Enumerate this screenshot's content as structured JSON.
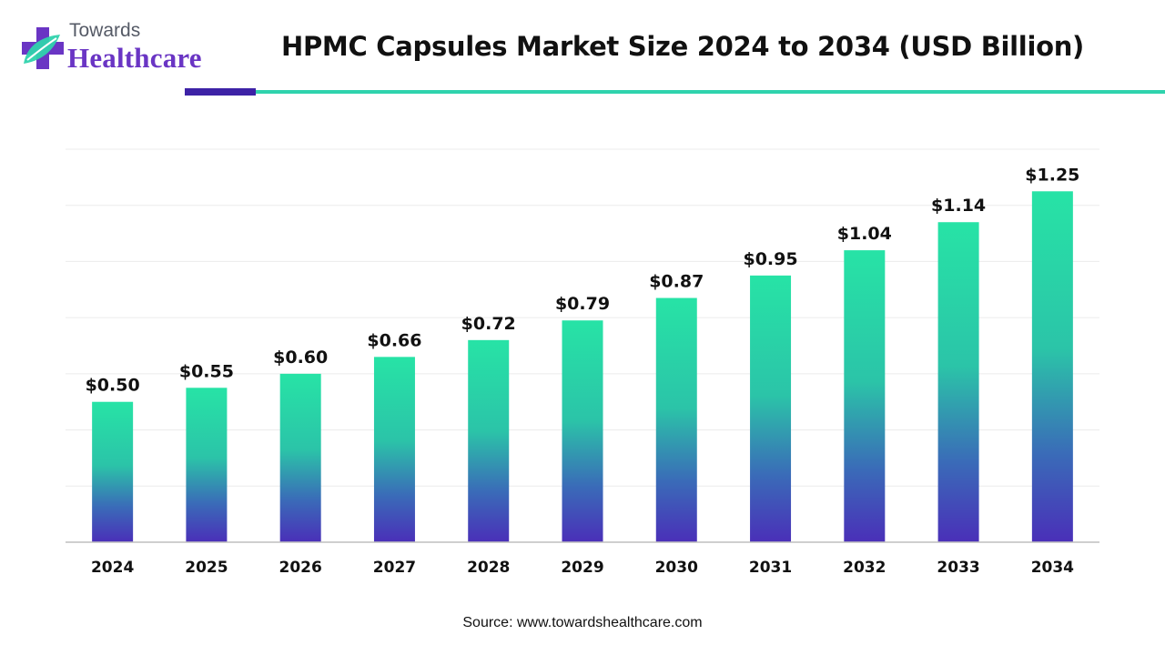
{
  "brand": {
    "line1": "Towards",
    "line2": "Healthcare",
    "mark_icon": "plus-cross-leaf-icon",
    "colors": {
      "purple": "#6a35c4",
      "teal": "#2fd3ad",
      "grey": "#555a66"
    }
  },
  "header": {
    "title": "HPMC Capsules Market Size 2024 to 2034 (USD Billion)"
  },
  "accent_colors": {
    "rule_purple": "#3d22a6",
    "rule_teal": "#2fd3ad",
    "bar_top": "#27e3a6",
    "bar_bottom": "#4a2fb8"
  },
  "chart_data": {
    "type": "bar",
    "title": "HPMC Capsules Market Size 2024 to 2034 (USD Billion)",
    "xlabel": "",
    "ylabel": "",
    "categories": [
      "2024",
      "2025",
      "2026",
      "2027",
      "2028",
      "2029",
      "2030",
      "2031",
      "2032",
      "2033",
      "2034"
    ],
    "values": [
      0.5,
      0.55,
      0.6,
      0.66,
      0.72,
      0.79,
      0.87,
      0.95,
      1.04,
      1.14,
      1.25
    ],
    "labels": [
      "$0.50",
      "$0.55",
      "$0.60",
      "$0.66",
      "$0.72",
      "$0.79",
      "$0.87",
      "$0.95",
      "$1.04",
      "$1.14",
      "$1.25"
    ],
    "ylim": [
      0,
      1.4
    ],
    "grid": true,
    "legend": "none"
  },
  "footer": {
    "source": "Source: www.towardshealthcare.com"
  }
}
